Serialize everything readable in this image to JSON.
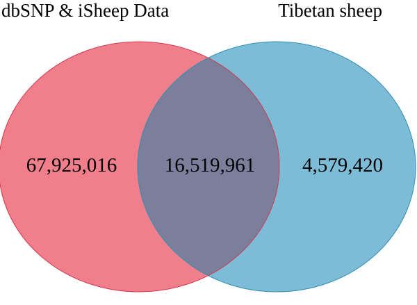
{
  "diagram": {
    "type": "venn",
    "sets": [
      {
        "key": "left",
        "label": "dbSNP & iSheep Data",
        "only_count": "67,925,016",
        "fill": "#f17f8b",
        "stroke": "#d23a4d"
      },
      {
        "key": "right",
        "label": "Tibetan sheep",
        "only_count": "4,579,420",
        "fill": "#7dbcd6",
        "stroke": "#2f8fb5"
      }
    ],
    "intersection": {
      "count": "16,519,961",
      "fill": "#7b7f9c"
    }
  }
}
